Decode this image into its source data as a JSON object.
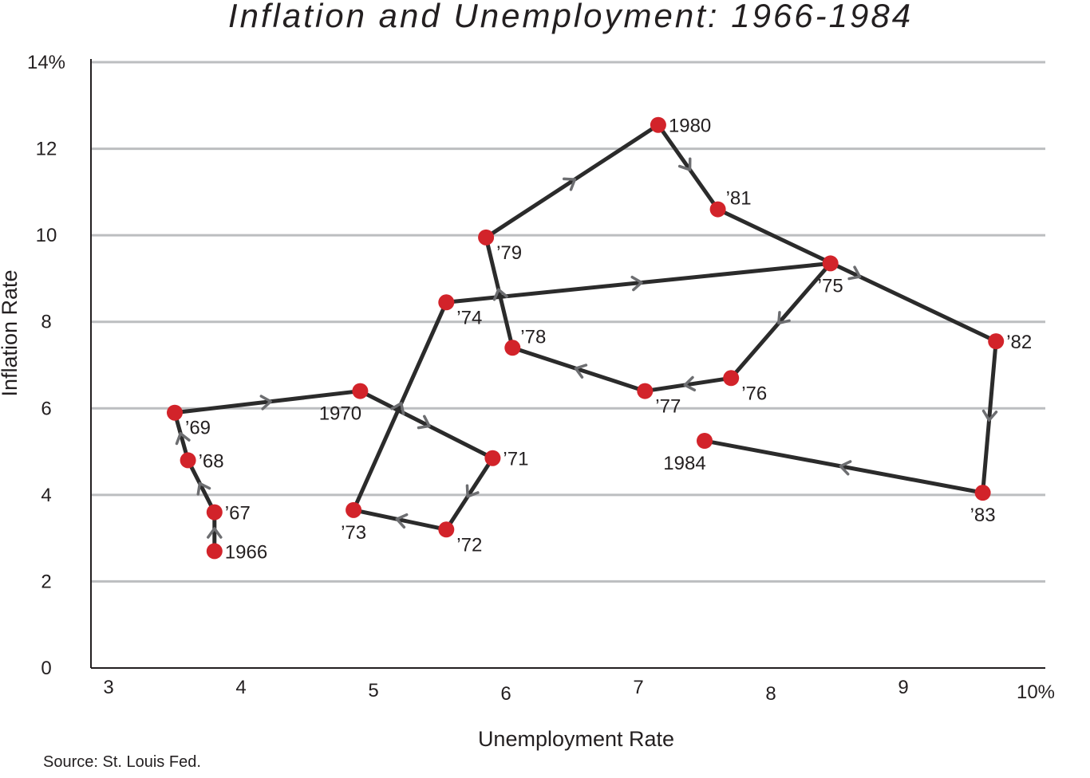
{
  "chart_data": {
    "type": "scatter",
    "title": "Inflation and Unemployment: 1966-1984",
    "xlabel": "Unemployment Rate",
    "ylabel": "Inflation Rate",
    "source": "Source: St. Louis Fed.",
    "xlim": [
      3,
      10
    ],
    "ylim": [
      0,
      14
    ],
    "x_ticks": [
      {
        "value": 3,
        "label": "3"
      },
      {
        "value": 4,
        "label": "4"
      },
      {
        "value": 5,
        "label": "5"
      },
      {
        "value": 6,
        "label": "6"
      },
      {
        "value": 7,
        "label": "7"
      },
      {
        "value": 8,
        "label": "8"
      },
      {
        "value": 9,
        "label": "9"
      },
      {
        "value": 10,
        "label": "10%"
      }
    ],
    "y_ticks": [
      {
        "value": 0,
        "label": "0"
      },
      {
        "value": 2,
        "label": "2"
      },
      {
        "value": 4,
        "label": "4"
      },
      {
        "value": 6,
        "label": "6"
      },
      {
        "value": 8,
        "label": "8"
      },
      {
        "value": 10,
        "label": "10"
      },
      {
        "value": 12,
        "label": "12"
      },
      {
        "value": 14,
        "label": "14%"
      }
    ],
    "grid": "horizontal",
    "connected": true,
    "arrows": true,
    "colors": {
      "point": "#d2232a",
      "line": "#2b2b2b",
      "arrow": "#6d6e71",
      "grid": "#bcbec0"
    },
    "points": [
      {
        "year": "1966",
        "x": 3.8,
        "y": 2.7,
        "label_pos": "right"
      },
      {
        "year": "’67",
        "x": 3.8,
        "y": 3.6,
        "label_pos": "right"
      },
      {
        "year": "’68",
        "x": 3.6,
        "y": 4.8,
        "label_pos": "right"
      },
      {
        "year": "’69",
        "x": 3.5,
        "y": 5.9,
        "label_pos": "below-right"
      },
      {
        "year": "1970",
        "x": 4.9,
        "y": 6.4,
        "label_pos": "below-left"
      },
      {
        "year": "’71",
        "x": 5.9,
        "y": 4.85,
        "label_pos": "right"
      },
      {
        "year": "’72",
        "x": 5.55,
        "y": 3.2,
        "label_pos": "below-right"
      },
      {
        "year": "’73",
        "x": 4.85,
        "y": 3.65,
        "label_pos": "below"
      },
      {
        "year": "’74",
        "x": 5.55,
        "y": 8.45,
        "label_pos": "below-right"
      },
      {
        "year": "’75",
        "x": 8.45,
        "y": 9.35,
        "label_pos": "below"
      },
      {
        "year": "’76",
        "x": 7.7,
        "y": 6.7,
        "label_pos": "below-right"
      },
      {
        "year": "’77",
        "x": 7.05,
        "y": 6.4,
        "label_pos": "below-right"
      },
      {
        "year": "’78",
        "x": 6.05,
        "y": 7.4,
        "label_pos": "above-right"
      },
      {
        "year": "’79",
        "x": 5.85,
        "y": 9.95,
        "label_pos": "below-right"
      },
      {
        "year": "1980",
        "x": 7.15,
        "y": 12.55,
        "label_pos": "right"
      },
      {
        "year": "’81",
        "x": 7.6,
        "y": 10.6,
        "label_pos": "above-right"
      },
      {
        "year": "’82",
        "x": 9.7,
        "y": 7.55,
        "label_pos": "right"
      },
      {
        "year": "’83",
        "x": 9.6,
        "y": 4.05,
        "label_pos": "below"
      },
      {
        "year": "1984",
        "x": 7.5,
        "y": 5.25,
        "label_pos": "below-left"
      }
    ]
  }
}
